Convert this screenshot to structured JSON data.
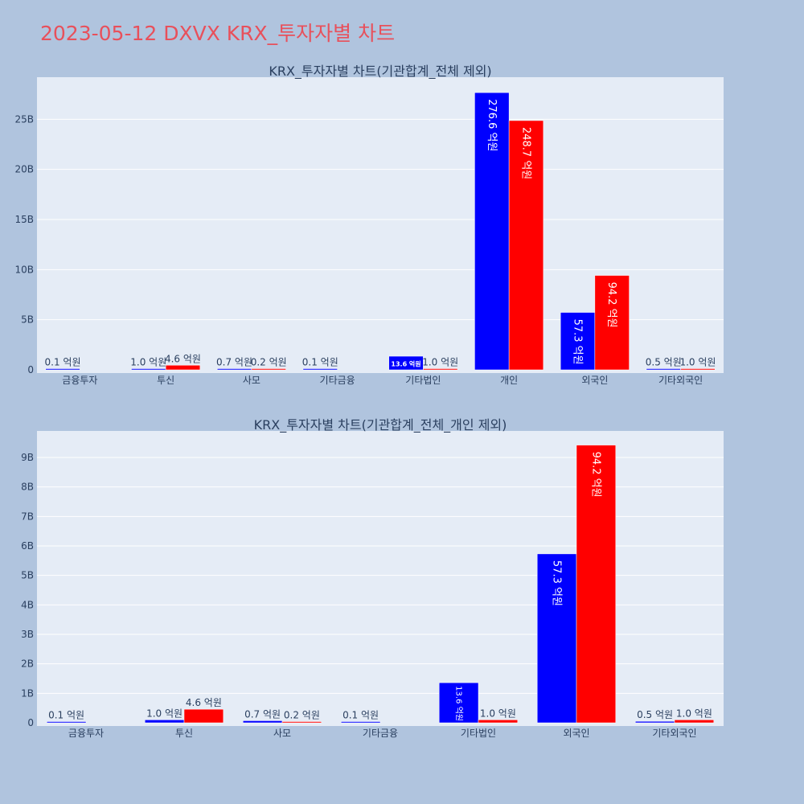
{
  "page": {
    "title": "2023-05-12 DXVX KRX_투자자별 차트",
    "colors": {
      "background": "#b0c4de",
      "plot_bg": "#e5ecf6",
      "title": "#e8505b",
      "series_blue": "#0000ff",
      "series_red": "#ff0000"
    }
  },
  "chart_data": [
    {
      "type": "bar",
      "title": "KRX_투자자별 차트(기관합계_전체 제외)",
      "categories": [
        "금융투자",
        "투신",
        "사모",
        "기타금융",
        "기타법인",
        "개인",
        "외국인",
        "기타외국인"
      ],
      "series": [
        {
          "color": "#0000ff",
          "values": [
            0.01,
            0.1,
            0.07,
            0.01,
            1.36,
            27.66,
            5.73,
            0.05
          ],
          "labels": [
            "0.1 억원",
            "1.0 억원",
            "0.7 억원",
            "0.1 억원",
            "13.6 억원",
            "276.6 억원",
            "57.3 억원",
            "0.5 억원"
          ]
        },
        {
          "color": "#ff0000",
          "values": [
            0,
            0.46,
            0.02,
            0,
            0.1,
            24.87,
            9.42,
            0.1
          ],
          "labels": [
            "",
            "4.6 억원",
            "0.2 억원",
            "",
            "1.0 억원",
            "248.7 억원",
            "94.2 억원",
            "1.0 억원"
          ]
        }
      ],
      "yticks": [
        "0",
        "5B",
        "10B",
        "15B",
        "20B",
        "25B"
      ],
      "ylim": [
        0,
        29.2
      ],
      "grid": true,
      "unit": "B"
    },
    {
      "type": "bar",
      "title": "KRX_투자자별 차트(기관합계_전체_개인 제외)",
      "categories": [
        "금융투자",
        "투신",
        "사모",
        "기타금융",
        "기타법인",
        "외국인",
        "기타외국인"
      ],
      "series": [
        {
          "color": "#0000ff",
          "values": [
            0.01,
            0.1,
            0.07,
            0.01,
            1.36,
            5.73,
            0.05
          ],
          "labels": [
            "0.1 억원",
            "1.0 억원",
            "0.7 억원",
            "0.1 억원",
            "13.6 억원",
            "57.3 억원",
            "0.5 억원"
          ]
        },
        {
          "color": "#ff0000",
          "values": [
            0,
            0.46,
            0.02,
            0,
            0.1,
            9.42,
            0.1
          ],
          "labels": [
            "",
            "4.6 억원",
            "0.2 억원",
            "",
            "1.0 억원",
            "94.2 억원",
            "1.0 억원"
          ]
        }
      ],
      "yticks": [
        "0",
        "1B",
        "2B",
        "3B",
        "4B",
        "5B",
        "6B",
        "7B",
        "8B",
        "9B"
      ],
      "ylim": [
        0,
        9.9
      ],
      "grid": true,
      "unit": "B"
    }
  ]
}
